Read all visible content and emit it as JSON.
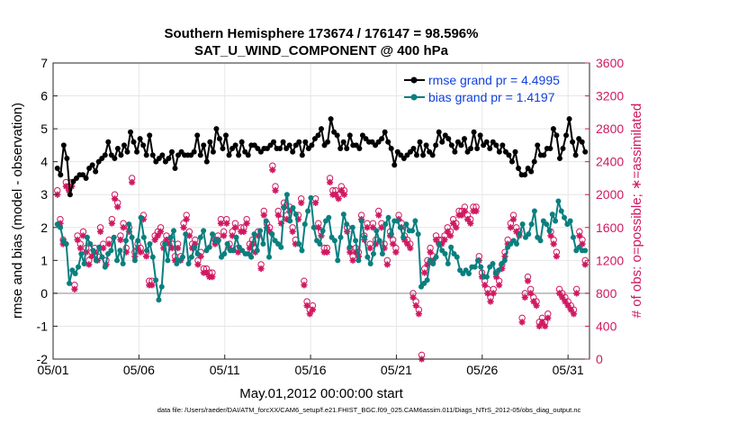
{
  "chart_data": {
    "type": "line",
    "title": "Southern Hemisphere 173674 / 176147 = 98.596%",
    "subtitle": "SAT_U_WIND_COMPONENT @ 400 hPa",
    "xlabel": "May.01,2012 00:00:00 start",
    "ylabel": "rmse and bias (model - observation)",
    "y2label": "# of obs: o=possible; ∗=assimilated",
    "footer": "data file: /Users/raeder/DAI/ATM_forcXX/CAM6_setup/f.e21.FHIST_BGC.f09_025.CAM6assim.011/Diags_NTrS_2012-05/obs_diag_output.nc",
    "xlim": [
      0,
      31.25
    ],
    "ylim": [
      -2,
      7
    ],
    "y2lim": [
      0,
      3600
    ],
    "xticks": [
      0,
      5,
      10,
      15,
      20,
      25,
      30
    ],
    "xticklabels": [
      "05/01",
      "05/06",
      "05/11",
      "05/16",
      "05/21",
      "05/26",
      "05/31"
    ],
    "yticks": [
      -2,
      -1,
      0,
      1,
      2,
      3,
      4,
      5,
      6,
      7
    ],
    "y2ticks": [
      0,
      400,
      800,
      1200,
      1600,
      2000,
      2400,
      2800,
      3200,
      3600
    ],
    "grid": true,
    "legend_position": "top-right",
    "colors": {
      "rmse": "#000000",
      "bias": "#0a7f7f",
      "obs": "#d01860",
      "legend_text": "#1040e0",
      "zero_line": "#b0b0b0"
    },
    "series": [
      {
        "name": "rmse grand pr = 4.4995",
        "axis": "left",
        "values": [
          3.8,
          3.6,
          4.5,
          4.1,
          3.0,
          3.4,
          3.5,
          3.6,
          3.6,
          3.5,
          3.8,
          3.9,
          3.7,
          4.0,
          4.1,
          4.2,
          4.6,
          4.2,
          4.1,
          4.4,
          4.2,
          4.5,
          4.3,
          4.9,
          4.6,
          4.3,
          4.7,
          4.5,
          4.2,
          4.8,
          4.2,
          4.0,
          4.1,
          4.2,
          4.0,
          4.1,
          4.3,
          3.8,
          4.2,
          4.3,
          4.2,
          4.2,
          4.2,
          4.3,
          4.8,
          4.2,
          4.5,
          4.0,
          4.6,
          4.3,
          5.0,
          4.7,
          4.4,
          4.8,
          4.2,
          4.4,
          4.5,
          4.2,
          4.6,
          4.3,
          4.2,
          4.5,
          4.5,
          4.4,
          4.3,
          4.4,
          4.4,
          4.5,
          4.6,
          4.4,
          4.4,
          4.6,
          4.4,
          4.5,
          4.3,
          4.5,
          4.6,
          4.2,
          4.6,
          4.4,
          4.5,
          4.7,
          4.8,
          5.0,
          4.5,
          4.6,
          5.3,
          4.9,
          4.8,
          4.4,
          4.6,
          4.4,
          4.8,
          4.5,
          4.5,
          4.4,
          4.8,
          4.7,
          4.6,
          4.6,
          4.5,
          4.6,
          4.7,
          4.9,
          4.6,
          4.4,
          3.9,
          4.3,
          4.2,
          4.1,
          4.2,
          4.3,
          4.4,
          4.2,
          4.6,
          4.2,
          4.5,
          4.3,
          4.2,
          4.5,
          4.9,
          4.6,
          4.8,
          4.7,
          4.5,
          4.3,
          4.6,
          4.5,
          4.7,
          4.3,
          4.4,
          4.9,
          4.4,
          4.8,
          4.5,
          4.6,
          4.4,
          4.6,
          4.5,
          4.3,
          4.5,
          4.3,
          4.2,
          4.0,
          4.3,
          3.8,
          3.6,
          3.6,
          3.8,
          3.7,
          4.0,
          4.5,
          4.2,
          4.2,
          4.4,
          4.4,
          5.0,
          4.8,
          4.1,
          4.4,
          4.8,
          5.3,
          4.6,
          4.2,
          4.7,
          4.6,
          4.3
        ]
      },
      {
        "name": "bias grand pr = 1.4197",
        "axis": "left",
        "values": [
          2.1,
          2.0,
          1.6,
          1.5,
          0.3,
          0.7,
          0.6,
          0.8,
          1.2,
          0.9,
          1.7,
          1.5,
          1.3,
          1.0,
          1.4,
          1.1,
          0.8,
          1.2,
          1.3,
          1.7,
          1.0,
          1.3,
          0.9,
          1.6,
          2.1,
          1.7,
          1.0,
          1.6,
          2.3,
          1.7,
          1.3,
          1.5,
          1.1,
          0.4,
          -0.2,
          0.2,
          1.5,
          1.0,
          1.7,
          1.9,
          0.9,
          1.0,
          1.1,
          1.8,
          0.9,
          1.1,
          1.4,
          1.2,
          1.7,
          1.9,
          1.3,
          1.4,
          1.8,
          1.6,
          1.6,
          1.1,
          1.2,
          1.5,
          1.3,
          1.3,
          1.7,
          1.4,
          1.3,
          1.2,
          1.2,
          1.1,
          1.8,
          1.3,
          1.9,
          1.5,
          2.2,
          1.1,
          1.8,
          1.6,
          1.5,
          1.4,
          2.6,
          3.0,
          2.2,
          2.6,
          2.4,
          1.5,
          1.3,
          2.1,
          2.5,
          2.9,
          2.0,
          1.6,
          1.5,
          1.9,
          2.2,
          2.3,
          1.7,
          1.6,
          1.0,
          1.7,
          2.4,
          2.1,
          1.4,
          2.0,
          1.6,
          1.0,
          2.2,
          1.7,
          1.1,
          0.9,
          1.2,
          1.9,
          1.6,
          1.2,
          2.1,
          2.3,
          1.8,
          2.2,
          2.2,
          2.0,
          1.7,
          2.1,
          1.9,
          1.9,
          2.2,
          1.8,
          0.2,
          0.3,
          0.4,
          1.0,
          0.9,
          1.1,
          1.5,
          1.3,
          1.2,
          0.9,
          1.4,
          1.2,
          1.1,
          0.7,
          0.6,
          0.7,
          0.6,
          0.8,
          0.8,
          1.0,
          0.8,
          0.5,
          0.5,
          0.8,
          0.9,
          0.6,
          0.7,
          0.9,
          1.0,
          1.4,
          1.5,
          1.6,
          1.5,
          1.8,
          2.1,
          1.7,
          1.8,
          2.1,
          2.5,
          1.7,
          1.6,
          2.2,
          2.1,
          1.9,
          2.4,
          2.2,
          2.8,
          2.5,
          2.3,
          2.1,
          2.2,
          1.7,
          1.3,
          1.4,
          1.3,
          1.3
        ]
      }
    ],
    "obs_assimilated": {
      "name": "assimilated",
      "axis": "right",
      "values": [
        2000,
        1650,
        1400,
        2100,
        2050,
        2100,
        850,
        1450,
        1350,
        1500,
        1300,
        1150,
        1250,
        1300,
        1200,
        1550,
        1350,
        1150,
        1400,
        1650,
        1950,
        1850,
        1450,
        1600,
        1300,
        1550,
        2150,
        1250,
        1350,
        1300,
        1700,
        1250,
        900,
        900,
        1450,
        1500,
        1550,
        1350,
        1450,
        1400,
        1350,
        1200,
        1350,
        1200,
        1600,
        1700,
        1500,
        1350,
        1400,
        1150,
        1250,
        1050,
        1050,
        1000,
        1000,
        1400,
        1450,
        1650,
        1500,
        1650,
        1350,
        1500,
        1600,
        1300,
        1550,
        1550,
        1650,
        1350,
        1400,
        1300,
        1500,
        1100,
        1750,
        1600,
        1550,
        2300,
        2050,
        1750,
        1650,
        1850,
        1700,
        1800,
        1550,
        1400,
        1700,
        1900,
        900,
        650,
        550,
        600,
        1900,
        1600,
        1500,
        1300,
        1300,
        2150,
        2000,
        2000,
        1950,
        2050,
        2000,
        1550,
        1300,
        1200,
        1300,
        1250,
        1700,
        1450,
        1600,
        1350,
        1600,
        1400,
        1750,
        1600,
        1350,
        1150,
        1500,
        1400,
        1300,
        1700,
        1600,
        1450,
        1400,
        1350,
        750,
        650,
        550,
        0,
        1050,
        1150,
        1300,
        1200,
        1450,
        1400,
        1400,
        1450,
        1550,
        1500,
        1650,
        1600,
        1750,
        1750,
        1800,
        1700,
        1650,
        1800,
        1800,
        1200,
        1000,
        900,
        800,
        700,
        800,
        1000,
        900,
        1100,
        1250,
        1400,
        1600,
        1700,
        1550,
        1500,
        450,
        750,
        950,
        800,
        700,
        650,
        400,
        450,
        400,
        500,
        1500,
        1400,
        1250,
        800,
        750,
        700,
        650,
        600,
        550,
        800,
        1500,
        1400,
        1150
      ]
    },
    "obs_possible": {
      "name": "possible",
      "axis": "right",
      "values": [
        2050,
        1700,
        1450,
        2150,
        2100,
        2150,
        900,
        1500,
        1400,
        1550,
        1350,
        1200,
        1300,
        1350,
        1250,
        1600,
        1400,
        1200,
        1450,
        1700,
        2000,
        1900,
        1500,
        1650,
        1350,
        1600,
        2200,
        1300,
        1400,
        1350,
        1750,
        1300,
        950,
        950,
        1500,
        1550,
        1600,
        1400,
        1500,
        1450,
        1400,
        1250,
        1400,
        1250,
        1650,
        1750,
        1550,
        1400,
        1450,
        1200,
        1300,
        1100,
        1100,
        1050,
        1050,
        1450,
        1500,
        1700,
        1550,
        1700,
        1400,
        1550,
        1650,
        1350,
        1600,
        1600,
        1700,
        1400,
        1450,
        1350,
        1550,
        1150,
        1800,
        1650,
        1600,
        2350,
        2100,
        1800,
        1700,
        1900,
        1750,
        1850,
        1600,
        1450,
        1750,
        1950,
        950,
        700,
        600,
        650,
        1950,
        1650,
        1550,
        1350,
        1350,
        2200,
        2050,
        2050,
        2000,
        2100,
        2050,
        1600,
        1350,
        1250,
        1350,
        1300,
        1750,
        1500,
        1650,
        1400,
        1650,
        1450,
        1800,
        1650,
        1400,
        1200,
        1550,
        1450,
        1350,
        1750,
        1650,
        1500,
        1450,
        1400,
        800,
        700,
        600,
        50,
        1100,
        1200,
        1350,
        1250,
        1500,
        1450,
        1450,
        1500,
        1600,
        1550,
        1700,
        1650,
        1800,
        1800,
        1850,
        1750,
        1700,
        1850,
        1850,
        1250,
        1050,
        950,
        850,
        750,
        850,
        1050,
        950,
        1150,
        1300,
        1450,
        1650,
        1750,
        1600,
        1550,
        500,
        800,
        1000,
        850,
        750,
        700,
        450,
        500,
        450,
        550,
        1550,
        1450,
        1300,
        850,
        800,
        750,
        700,
        650,
        600,
        850,
        1550,
        1450,
        1200
      ]
    }
  }
}
